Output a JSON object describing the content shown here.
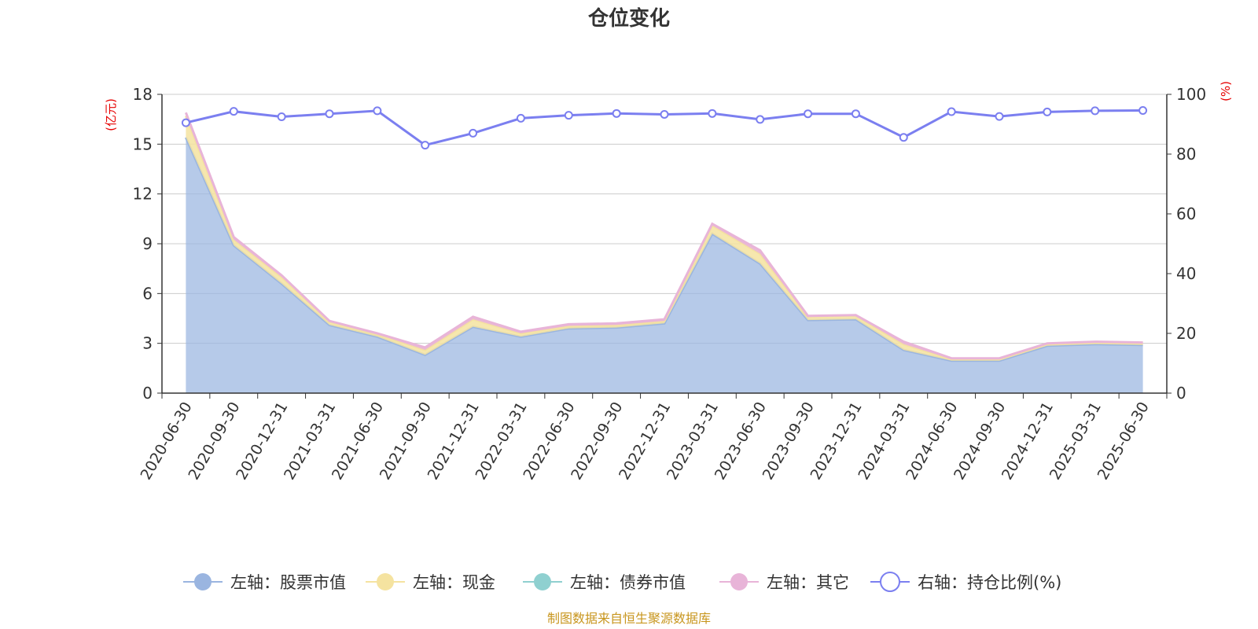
{
  "source_note": "制图数据来自恒生聚源数据库",
  "chart_data": {
    "type": "area",
    "title": "仓位变化",
    "left_axis_unit": "(亿元)",
    "right_axis_unit": "(%)",
    "ylim_left": [
      0,
      18
    ],
    "yticks_left": [
      0,
      3,
      6,
      9,
      12,
      15,
      18
    ],
    "ylim_right": [
      0,
      100
    ],
    "yticks_right": [
      0,
      20,
      40,
      60,
      80,
      100
    ],
    "grid": true,
    "legend_position": "bottom",
    "categories": [
      "2020-06-30",
      "2020-09-30",
      "2020-12-31",
      "2021-03-31",
      "2021-06-30",
      "2021-09-30",
      "2021-12-31",
      "2022-03-31",
      "2022-06-30",
      "2022-09-30",
      "2022-12-31",
      "2023-03-31",
      "2023-06-30",
      "2023-09-30",
      "2023-12-31",
      "2024-03-31",
      "2024-06-30",
      "2024-09-30",
      "2024-12-31",
      "2025-03-31",
      "2025-06-30"
    ],
    "series": [
      {
        "name": "左轴：股票市值",
        "axis": "left",
        "color": "#9ab5e0",
        "values": [
          15.4,
          8.9,
          6.6,
          4.1,
          3.4,
          2.3,
          4.0,
          3.4,
          3.9,
          3.95,
          4.2,
          9.6,
          7.8,
          4.4,
          4.45,
          2.6,
          1.95,
          1.95,
          2.85,
          2.95,
          2.9
        ]
      },
      {
        "name": "左轴：现金",
        "axis": "left",
        "color": "#f5e3a0",
        "values": [
          1.3,
          0.35,
          0.4,
          0.2,
          0.15,
          0.3,
          0.45,
          0.2,
          0.15,
          0.15,
          0.15,
          0.5,
          0.6,
          0.2,
          0.2,
          0.35,
          0.1,
          0.1,
          0.1,
          0.1,
          0.1
        ]
      },
      {
        "name": "左轴：债券市值",
        "axis": "left",
        "color": "#8fd0d0",
        "values": [
          0,
          0,
          0,
          0,
          0,
          0,
          0,
          0,
          0,
          0,
          0,
          0,
          0,
          0,
          0,
          0,
          0,
          0,
          0,
          0,
          0
        ]
      },
      {
        "name": "左轴：其它",
        "axis": "left",
        "color": "#e8b4d8",
        "values": [
          0.2,
          0.15,
          0.1,
          0.05,
          0.05,
          0.15,
          0.15,
          0.1,
          0.1,
          0.1,
          0.1,
          0.1,
          0.2,
          0.05,
          0.05,
          0.15,
          0.05,
          0.05,
          0.05,
          0.05,
          0.05
        ]
      },
      {
        "name": "右轴：持仓比例(%)",
        "axis": "right",
        "color": "#7b7ff0",
        "values": [
          90.5,
          94.3,
          92.5,
          93.5,
          94.5,
          83.0,
          87.0,
          92.0,
          93.0,
          93.6,
          93.3,
          93.6,
          91.6,
          93.5,
          93.5,
          85.6,
          94.2,
          92.6,
          94.1,
          94.5,
          94.6
        ]
      }
    ]
  }
}
